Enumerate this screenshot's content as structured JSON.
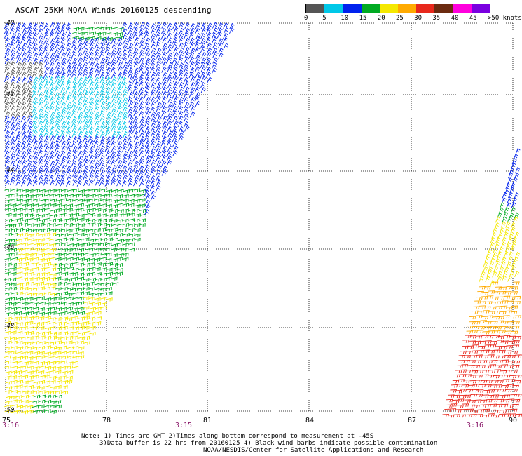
{
  "header": {
    "title": "ASCAT 25KM NOAA Winds 20160125 descending"
  },
  "legend": {
    "labels": [
      "0",
      "5",
      "10",
      "15",
      "20",
      "25",
      "30",
      "35",
      "40",
      "45",
      ">50 knots"
    ],
    "colors": [
      "#555555",
      "#00c8e8",
      "#0022ee",
      "#00aa22",
      "#f5e800",
      "#ffaa00",
      "#e8281c",
      "#6b2a10",
      "#ff00dd",
      "#7a00e0"
    ]
  },
  "map": {
    "latitudes": [
      "-40",
      "-42",
      "-44",
      "-46",
      "-48",
      "-50"
    ],
    "longitudes": [
      "75",
      "78",
      "81",
      "84",
      "87",
      "90"
    ],
    "times": [
      "3:16",
      "3:15",
      "3:16"
    ]
  },
  "notes": {
    "line1": "Note: 1) Times are GMT 2)Times along bottom correspond to measurement at -45S",
    "line2": "3)Data buffer is 22 hrs from 20160125 4) Black wind barbs indicate possible contamination",
    "line3": "NOAA/NESDIS/Center for Satellite Applications and Research"
  }
}
